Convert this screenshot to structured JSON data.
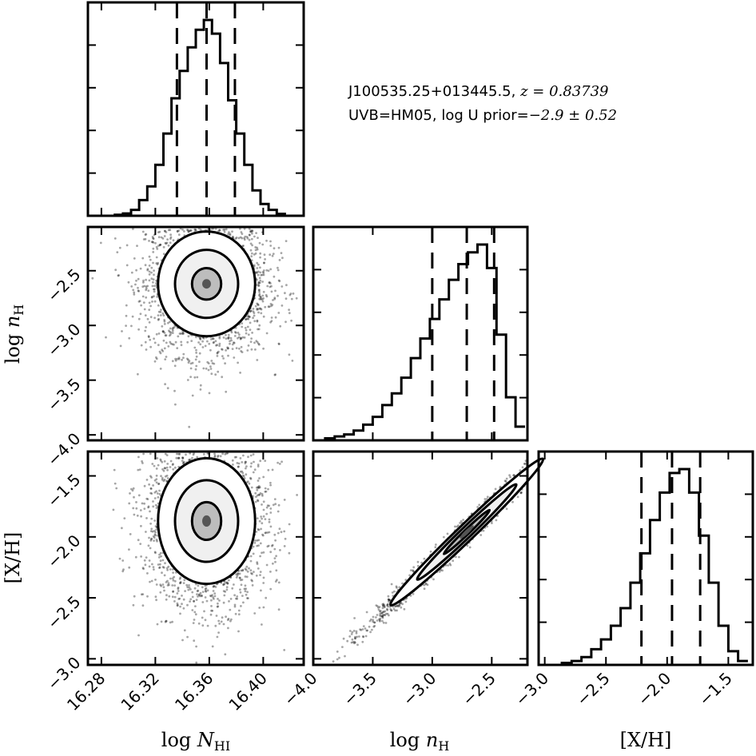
{
  "annotation": {
    "line1_name": "J100535.25+013445.5, ",
    "line1_math": "z = 0.83739",
    "line2_text": "UVB=HM05, log U prior=",
    "line2_math": "−2.9 ± 0.52"
  },
  "chart_data": [
    {
      "type": "histogram",
      "panel": "log_NHI marginal",
      "bin_centers": [
        16.287,
        16.293,
        16.299,
        16.305,
        16.311,
        16.317,
        16.323,
        16.329,
        16.335,
        16.341,
        16.347,
        16.353,
        16.359,
        16.365,
        16.371,
        16.377,
        16.383,
        16.389,
        16.395,
        16.401,
        16.407,
        16.413,
        16.419
      ],
      "counts": [
        0.0,
        0.005,
        0.012,
        0.03,
        0.08,
        0.15,
        0.26,
        0.42,
        0.6,
        0.74,
        0.86,
        0.95,
        1.0,
        0.93,
        0.78,
        0.59,
        0.42,
        0.26,
        0.13,
        0.06,
        0.03,
        0.01,
        0.0
      ],
      "quantile_lines": [
        16.336,
        16.358,
        16.379
      ],
      "xlim": [
        16.27,
        16.43
      ]
    },
    {
      "type": "histogram",
      "panel": "log_nH marginal",
      "bin_centers": [
        -3.94,
        -3.86,
        -3.78,
        -3.7,
        -3.62,
        -3.54,
        -3.46,
        -3.38,
        -3.3,
        -3.22,
        -3.14,
        -3.06,
        -2.98,
        -2.9,
        -2.82,
        -2.74,
        -2.66,
        -2.58,
        -2.5,
        -2.42,
        -2.34,
        -2.26
      ],
      "counts": [
        0.0,
        0.01,
        0.02,
        0.03,
        0.05,
        0.08,
        0.12,
        0.18,
        0.24,
        0.32,
        0.42,
        0.52,
        0.62,
        0.72,
        0.82,
        0.9,
        0.96,
        1.0,
        0.88,
        0.54,
        0.22,
        0.07
      ],
      "quantile_lines": [
        -3.0,
        -2.71,
        -2.48
      ],
      "xlim": [
        -4.0,
        -2.2
      ]
    },
    {
      "type": "histogram",
      "panel": "[X/H] marginal",
      "bin_centers": [
        -2.9,
        -2.82,
        -2.74,
        -2.66,
        -2.58,
        -2.5,
        -2.42,
        -2.34,
        -2.26,
        -2.18,
        -2.1,
        -2.02,
        -1.94,
        -1.86,
        -1.78,
        -1.7,
        -1.62,
        -1.54,
        -1.46,
        -1.38
      ],
      "counts": [
        0.0,
        0.01,
        0.02,
        0.04,
        0.08,
        0.13,
        0.2,
        0.29,
        0.42,
        0.57,
        0.74,
        0.88,
        0.98,
        1.0,
        0.88,
        0.66,
        0.42,
        0.2,
        0.07,
        0.02
      ],
      "quantile_lines": [
        -2.21,
        -1.96,
        -1.73
      ],
      "xlim": [
        -3.05,
        -1.3
      ]
    },
    {
      "type": "scatter",
      "panel": "log_nH vs log_NHI",
      "center": [
        16.358,
        -2.62
      ],
      "spread": [
        0.018,
        0.26
      ],
      "contour_levels": 3,
      "xlim": [
        16.27,
        16.43
      ],
      "ylim": [
        -4.05,
        -2.1
      ]
    },
    {
      "type": "scatter",
      "panel": "[X/H] vs log_NHI",
      "center": [
        16.358,
        -1.87
      ],
      "spread": [
        0.018,
        0.28
      ],
      "contour_levels": 3,
      "xlim": [
        16.27,
        16.43
      ],
      "ylim": [
        -3.05,
        -1.3
      ]
    },
    {
      "type": "scatter",
      "panel": "[X/H] vs log_nH",
      "center": [
        -2.71,
        -1.96
      ],
      "spread": [
        0.32,
        0.3
      ],
      "correlation": 0.99,
      "contour_levels": 3,
      "xlim": [
        -4.0,
        -2.2
      ],
      "ylim": [
        -3.05,
        -1.3
      ]
    }
  ],
  "axes": {
    "x_col0_ticks": [
      "16.28",
      "16.32",
      "16.36",
      "16.40"
    ],
    "x_col0_values": [
      16.28,
      16.32,
      16.36,
      16.4
    ],
    "x_col1_ticks": [
      "−4.0",
      "−3.5",
      "−3.0",
      "−2.5"
    ],
    "x_col1_values": [
      -4.0,
      -3.5,
      -3.0,
      -2.5
    ],
    "x_col2_ticks": [
      "−3.0",
      "−2.5",
      "−2.0",
      "−1.5"
    ],
    "x_col2_values": [
      -3.0,
      -2.5,
      -2.0,
      -1.5
    ],
    "y_row1_ticks": [
      "−2.5",
      "−3.0",
      "−3.5",
      "−4.0"
    ],
    "y_row1_values": [
      -2.5,
      -3.0,
      -3.5,
      -4.0
    ],
    "y_row2_ticks": [
      "−1.5",
      "−2.0",
      "−2.5",
      "−3.0"
    ],
    "y_row2_values": [
      -1.5,
      -2.0,
      -2.5,
      -3.0
    ],
    "xlabel_col0_prefix": "log ",
    "xlabel_col0_var": "N",
    "xlabel_col0_sub": "HI",
    "xlabel_col1_prefix": "log ",
    "xlabel_col1_var": "n",
    "xlabel_col1_sub": "H",
    "xlabel_col2": "[X/H]",
    "ylabel_row1_prefix": "log ",
    "ylabel_row1_var": "n",
    "ylabel_row1_sub": "H",
    "ylabel_row2": "[X/H]"
  }
}
